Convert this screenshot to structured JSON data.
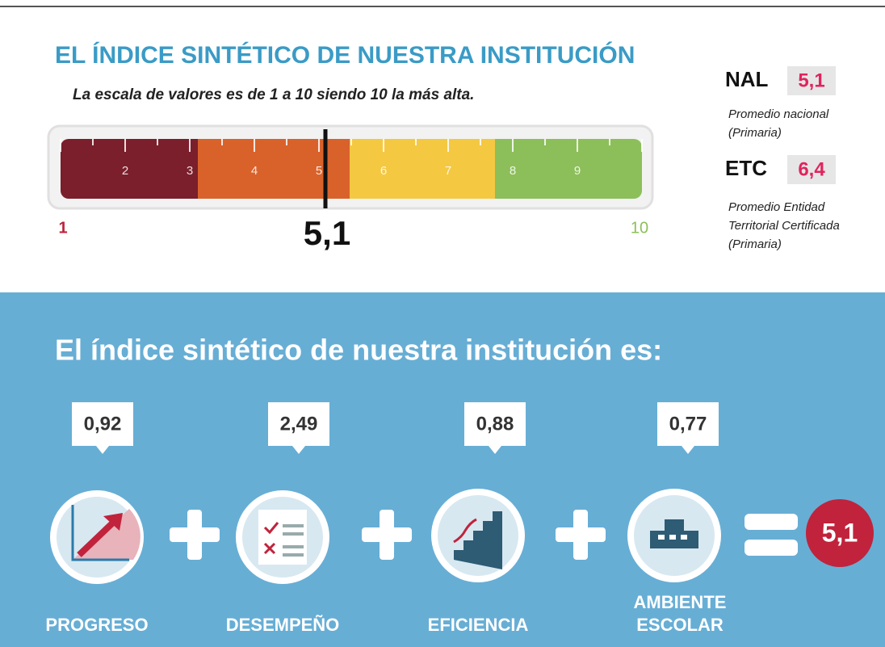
{
  "header": {
    "title": "EL ÍNDICE SINTÉTICO DE NUESTRA INSTITUCIÓN",
    "subtitle": "La escala de valores es de 1 a 10 siendo 10 la más alta."
  },
  "scale": {
    "min_label": "1",
    "max_label": "10",
    "tick_labels": [
      "2",
      "3",
      "4",
      "5",
      "6",
      "7",
      "8",
      "9"
    ],
    "marker_label": "5,1"
  },
  "comparisons": [
    {
      "code": "NAL",
      "value": "5,1",
      "description_lines": [
        "Promedio nacional",
        "(Primaria)"
      ]
    },
    {
      "code": "ETC",
      "value": "6,4",
      "description_lines": [
        "Promedio Entidad",
        "Territorial Certificada",
        "(Primaria)"
      ]
    }
  ],
  "summary": {
    "title": "El índice sintético de nuestra institución es:",
    "components": [
      {
        "value": "0,92",
        "label_lines": [
          "PROGRESO"
        ]
      },
      {
        "value": "2,49",
        "label_lines": [
          "DESEMPEÑO"
        ]
      },
      {
        "value": "0,88",
        "label_lines": [
          "EFICIENCIA"
        ]
      },
      {
        "value": "0,77",
        "label_lines": [
          "AMBIENTE",
          "ESCOLAR"
        ]
      }
    ],
    "result": "5,1"
  }
}
